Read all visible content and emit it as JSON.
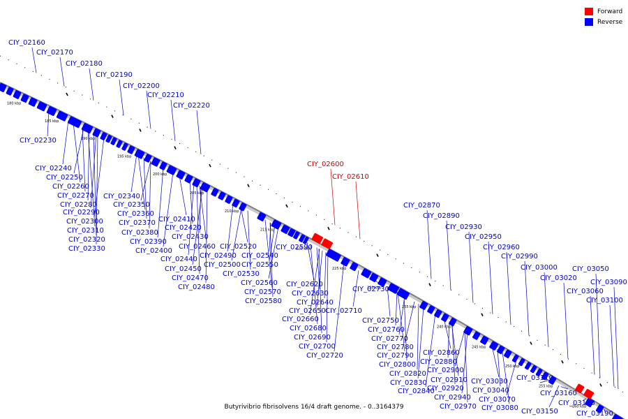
{
  "caption": "Butyrivibrio fibrisolvens 16/4 draft genome. - 0..3164379",
  "legend": [
    {
      "label": "Forward",
      "color": "#ff0000"
    },
    {
      "label": "Reverse",
      "color": "#0000ff"
    }
  ],
  "colors": {
    "forward": "#ff0000",
    "reverse": "#0000ff",
    "backbone": "#808080",
    "label_forward": "#cc0000",
    "label_reverse": "#0000cc"
  },
  "scale_labels": [
    "180 kbp",
    "185 kbp",
    "190 kbp",
    "195 kbp",
    "200 kbp",
    "205 kbp",
    "210 kbp",
    "215 kbp",
    "220 kbp",
    "225 kbp",
    "230 kbp",
    "235 kbp",
    "240 kbp",
    "245 kbp",
    "250 kbp",
    "255 kbp",
    "260 kbp",
    "265 kbp"
  ],
  "genes": [
    {
      "id": "CIY_02160",
      "strand": "reverse"
    },
    {
      "id": "CIY_02170",
      "strand": "reverse"
    },
    {
      "id": "CIY_02180",
      "strand": "reverse"
    },
    {
      "id": "CIY_02190",
      "strand": "reverse"
    },
    {
      "id": "CIY_02200",
      "strand": "reverse"
    },
    {
      "id": "CIY_02210",
      "strand": "reverse"
    },
    {
      "id": "CIY_02220",
      "strand": "reverse"
    },
    {
      "id": "CIY_02230",
      "strand": "reverse"
    },
    {
      "id": "CIY_02240",
      "strand": "reverse"
    },
    {
      "id": "CIY_02250",
      "strand": "reverse"
    },
    {
      "id": "CIY_02260",
      "strand": "reverse"
    },
    {
      "id": "CIY_02270",
      "strand": "reverse"
    },
    {
      "id": "CIY_02280",
      "strand": "reverse"
    },
    {
      "id": "CIY_02290",
      "strand": "reverse"
    },
    {
      "id": "CIY_02300",
      "strand": "reverse"
    },
    {
      "id": "CIY_02310",
      "strand": "reverse"
    },
    {
      "id": "CIY_02320",
      "strand": "reverse"
    },
    {
      "id": "CIY_02330",
      "strand": "reverse"
    },
    {
      "id": "CIY_02340",
      "strand": "reverse"
    },
    {
      "id": "CIY_02350",
      "strand": "reverse"
    },
    {
      "id": "CIY_02360",
      "strand": "reverse"
    },
    {
      "id": "CIY_02370",
      "strand": "reverse"
    },
    {
      "id": "CIY_02380",
      "strand": "reverse"
    },
    {
      "id": "CIY_02390",
      "strand": "reverse"
    },
    {
      "id": "CIY_02400",
      "strand": "reverse"
    },
    {
      "id": "CIY_02410",
      "strand": "reverse"
    },
    {
      "id": "CIY_02420",
      "strand": "reverse"
    },
    {
      "id": "CIY_02430",
      "strand": "reverse"
    },
    {
      "id": "CIY_02440",
      "strand": "reverse"
    },
    {
      "id": "CIY_02450",
      "strand": "reverse"
    },
    {
      "id": "CIY_02460",
      "strand": "reverse"
    },
    {
      "id": "CIY_02470",
      "strand": "reverse"
    },
    {
      "id": "CIY_02480",
      "strand": "reverse"
    },
    {
      "id": "CIY_02490",
      "strand": "reverse"
    },
    {
      "id": "CIY_02500",
      "strand": "reverse"
    },
    {
      "id": "CIY_02520",
      "strand": "reverse"
    },
    {
      "id": "CIY_02530",
      "strand": "reverse"
    },
    {
      "id": "CIY_02540",
      "strand": "reverse"
    },
    {
      "id": "CIY_02550",
      "strand": "reverse"
    },
    {
      "id": "CIY_02560",
      "strand": "reverse"
    },
    {
      "id": "CIY_02570",
      "strand": "reverse"
    },
    {
      "id": "CIY_02580",
      "strand": "reverse"
    },
    {
      "id": "CIY_02590",
      "strand": "reverse"
    },
    {
      "id": "CIY_02600",
      "strand": "forward"
    },
    {
      "id": "CIY_02610",
      "strand": "forward"
    },
    {
      "id": "CIY_02620",
      "strand": "reverse"
    },
    {
      "id": "CIY_02630",
      "strand": "reverse"
    },
    {
      "id": "CIY_02640",
      "strand": "reverse"
    },
    {
      "id": "CIY_02650",
      "strand": "reverse"
    },
    {
      "id": "CIY_02660",
      "strand": "reverse"
    },
    {
      "id": "CIY_02680",
      "strand": "reverse"
    },
    {
      "id": "CIY_02690",
      "strand": "reverse"
    },
    {
      "id": "CIY_02700",
      "strand": "reverse"
    },
    {
      "id": "CIY_02710",
      "strand": "reverse"
    },
    {
      "id": "CIY_02720",
      "strand": "reverse"
    },
    {
      "id": "CIY_02730",
      "strand": "reverse"
    },
    {
      "id": "CIY_02750",
      "strand": "reverse"
    },
    {
      "id": "CIY_02760",
      "strand": "reverse"
    },
    {
      "id": "CIY_02770",
      "strand": "reverse"
    },
    {
      "id": "CIY_02780",
      "strand": "reverse"
    },
    {
      "id": "CIY_02790",
      "strand": "reverse"
    },
    {
      "id": "CIY_02800",
      "strand": "reverse"
    },
    {
      "id": "CIY_02820",
      "strand": "reverse"
    },
    {
      "id": "CIY_02830",
      "strand": "reverse"
    },
    {
      "id": "CIY_02840",
      "strand": "reverse"
    },
    {
      "id": "CIY_02860",
      "strand": "reverse"
    },
    {
      "id": "CIY_02870",
      "strand": "reverse"
    },
    {
      "id": "CIY_02880",
      "strand": "reverse"
    },
    {
      "id": "CIY_02890",
      "strand": "reverse"
    },
    {
      "id": "CIY_02900",
      "strand": "reverse"
    },
    {
      "id": "CIY_02910",
      "strand": "reverse"
    },
    {
      "id": "CIY_02920",
      "strand": "reverse"
    },
    {
      "id": "CIY_02930",
      "strand": "reverse"
    },
    {
      "id": "CIY_02940",
      "strand": "reverse"
    },
    {
      "id": "CIY_02950",
      "strand": "reverse"
    },
    {
      "id": "CIY_02960",
      "strand": "reverse"
    },
    {
      "id": "CIY_02970",
      "strand": "reverse"
    },
    {
      "id": "CIY_02990",
      "strand": "reverse"
    },
    {
      "id": "CIY_03000",
      "strand": "reverse"
    },
    {
      "id": "CIY_03020",
      "strand": "reverse"
    },
    {
      "id": "CIY_03030",
      "strand": "reverse"
    },
    {
      "id": "CIY_03040",
      "strand": "reverse"
    },
    {
      "id": "CIY_03050",
      "strand": "reverse"
    },
    {
      "id": "CIY_03060",
      "strand": "reverse"
    },
    {
      "id": "CIY_03070",
      "strand": "reverse"
    },
    {
      "id": "CIY_03080",
      "strand": "reverse"
    },
    {
      "id": "CIY_03090",
      "strand": "reverse"
    },
    {
      "id": "CIY_03100",
      "strand": "reverse"
    },
    {
      "id": "CIY_03110",
      "strand": "reverse"
    },
    {
      "id": "CIY_03150",
      "strand": "reverse"
    },
    {
      "id": "CIY_03160",
      "strand": "reverse"
    },
    {
      "id": "CIY_03170",
      "strand": "reverse"
    },
    {
      "id": "CIY_03190",
      "strand": "reverse"
    }
  ]
}
